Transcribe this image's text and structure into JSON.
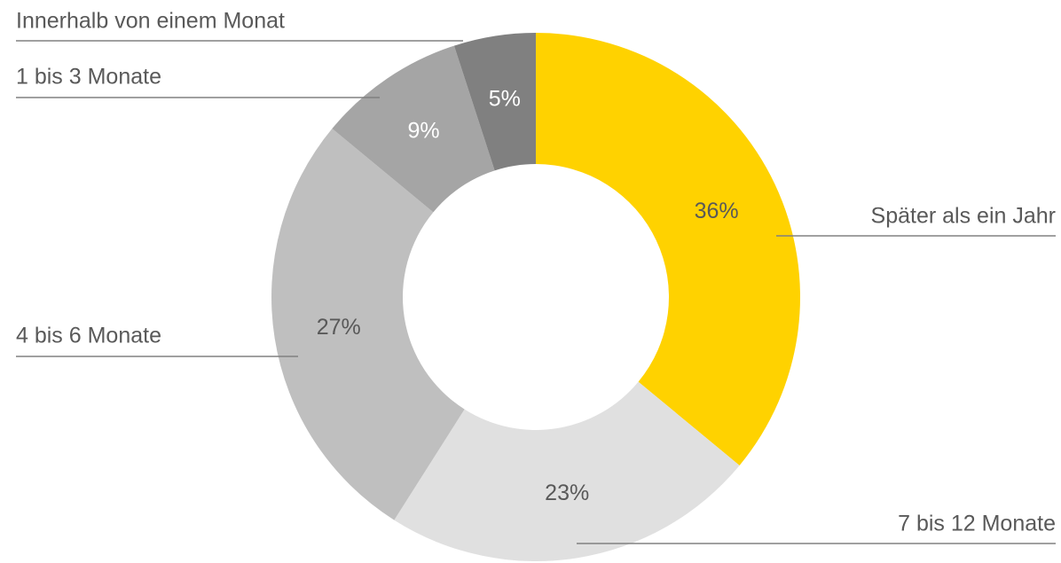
{
  "chart_data": {
    "type": "donut",
    "categories": [
      "Später als ein Jahr",
      "7 bis 12 Monate",
      "4 bis 6 Monate",
      "1 bis 3 Monate",
      "Innerhalb von einem Monat"
    ],
    "values": [
      36,
      23,
      27,
      9,
      5
    ],
    "value_labels": [
      "36%",
      "23%",
      "27%",
      "9%",
      "5%"
    ],
    "colors": [
      "#ffd200",
      "#e0e0e0",
      "#bfbfbf",
      "#a5a5a5",
      "#808080"
    ]
  }
}
